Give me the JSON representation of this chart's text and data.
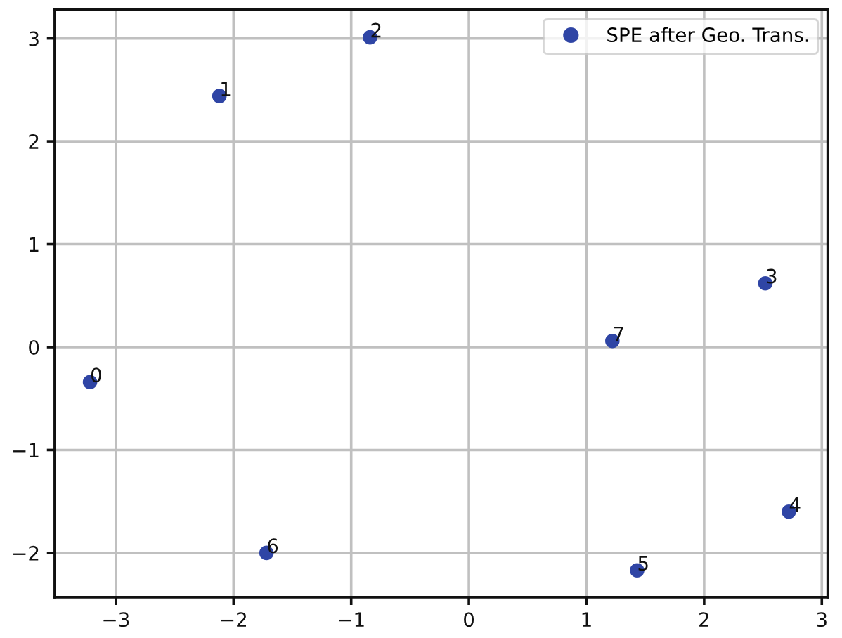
{
  "chart_data": {
    "type": "scatter",
    "series": [
      {
        "name": "SPE after Geo. Trans.",
        "color": "#2f45a5",
        "x": [
          -3.22,
          -2.12,
          -0.84,
          2.52,
          2.72,
          1.43,
          -1.72,
          1.22
        ],
        "values": [
          -0.34,
          2.44,
          3.01,
          0.62,
          -1.6,
          -2.17,
          -2.0,
          0.06
        ]
      }
    ],
    "annotations": [
      {
        "text": "0",
        "x": -3.22,
        "y": -0.34
      },
      {
        "text": "1",
        "x": -2.12,
        "y": 2.44
      },
      {
        "text": "2",
        "x": -0.84,
        "y": 3.01
      },
      {
        "text": "3",
        "x": 2.52,
        "y": 0.62
      },
      {
        "text": "4",
        "x": 2.72,
        "y": -1.6
      },
      {
        "text": "5",
        "x": 1.43,
        "y": -2.17
      },
      {
        "text": "6",
        "x": -1.72,
        "y": -2.0
      },
      {
        "text": "7",
        "x": 1.22,
        "y": 0.06
      }
    ],
    "xlim": [
      -3.52,
      3.05
    ],
    "ylim": [
      -2.43,
      3.28
    ],
    "xticks": [
      -3,
      -2,
      -1,
      0,
      1,
      2,
      3
    ],
    "yticks": [
      -2,
      -1,
      0,
      1,
      2,
      3
    ],
    "grid": true,
    "legend": "top right",
    "marker": "circle"
  }
}
